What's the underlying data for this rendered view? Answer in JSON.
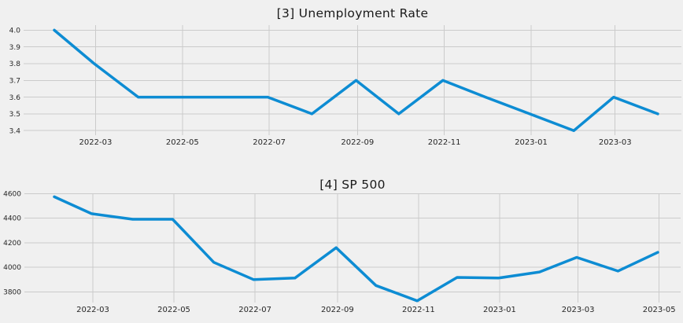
{
  "page": {
    "background_color": "#f0f0f0"
  },
  "chart_data": [
    {
      "type": "line",
      "title": "[3] Unemployment Rate",
      "series_name": "Unemployment Rate",
      "x": [
        "2022-01-31",
        "2022-02-28",
        "2022-03-31",
        "2022-04-30",
        "2022-05-31",
        "2022-06-30",
        "2022-07-31",
        "2022-08-31",
        "2022-09-30",
        "2022-10-31",
        "2022-11-30",
        "2022-12-31",
        "2023-01-31",
        "2023-02-28",
        "2023-03-31"
      ],
      "values": [
        4.0,
        3.8,
        3.6,
        3.6,
        3.6,
        3.6,
        3.5,
        3.7,
        3.5,
        3.7,
        3.6,
        3.5,
        3.4,
        3.6,
        3.5
      ],
      "xtick_dates": [
        "2022-03-01",
        "2022-05-01",
        "2022-07-01",
        "2022-09-01",
        "2022-11-01",
        "2023-01-01",
        "2023-03-01"
      ],
      "xtick_labels": [
        "2022-03",
        "2022-05",
        "2022-07",
        "2022-09",
        "2022-11",
        "2023-01",
        "2023-03"
      ],
      "ytick_values": [
        3.4,
        3.5,
        3.6,
        3.7,
        3.8,
        3.9,
        4.0
      ],
      "ytick_labels": [
        "3.4",
        "3.5",
        "3.6",
        "3.7",
        "3.8",
        "3.9",
        "4.0"
      ],
      "ylim": [
        3.373,
        4.03
      ],
      "grid": true,
      "legend": "none",
      "line_color": "#0d8cd3",
      "grid_color": "#cbcbcb",
      "background": "#f0f0f0",
      "text_color": "#262626"
    },
    {
      "type": "line",
      "title": "[4] SP 500",
      "series_name": "SP 500",
      "x": [
        "2022-01-31",
        "2022-02-28",
        "2022-03-31",
        "2022-04-30",
        "2022-05-31",
        "2022-06-30",
        "2022-07-31",
        "2022-08-31",
        "2022-09-30",
        "2022-10-31",
        "2022-11-30",
        "2022-12-31",
        "2023-01-31",
        "2023-02-28",
        "2023-03-31",
        "2023-04-30"
      ],
      "values": [
        4574,
        4436,
        4391,
        4391,
        4040,
        3899,
        3912,
        4159,
        3851,
        3726,
        3917,
        3912,
        3961,
        4080,
        3969,
        4121
      ],
      "xtick_dates": [
        "2022-03-01",
        "2022-05-01",
        "2022-07-01",
        "2022-09-01",
        "2022-11-01",
        "2023-01-01",
        "2023-03-01",
        "2023-05-01"
      ],
      "xtick_labels": [
        "2022-03",
        "2022-05",
        "2022-07",
        "2022-09",
        "2022-11",
        "2023-01",
        "2023-03",
        "2023-05"
      ],
      "ytick_values": [
        3800,
        4000,
        4200,
        4400,
        4600
      ],
      "ytick_labels": [
        "3800",
        "4000",
        "4200",
        "4400",
        "4600"
      ],
      "ylim": [
        3712,
        4602
      ],
      "grid": true,
      "legend": "none",
      "line_color": "#0d8cd3",
      "grid_color": "#cbcbcb",
      "background": "#f0f0f0",
      "text_color": "#262626"
    }
  ]
}
